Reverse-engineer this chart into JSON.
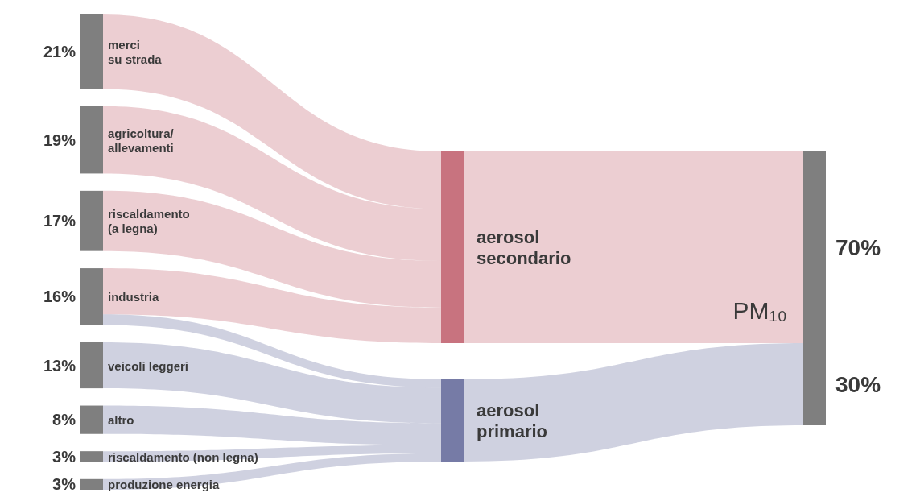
{
  "chart_data": {
    "type": "other",
    "title": "PM₁₀",
    "categories": [
      "merci\nsu strada",
      "agricoltura/\nallevamenti",
      "riscaldamento\n(a legna)",
      "industria",
      "veicoli leggeri",
      "altro",
      "riscaldamento (non legna)",
      "produzione energia",
      "aerosol\nsecondario",
      "aerosol\nprimario"
    ],
    "values": [
      21,
      19,
      17,
      16,
      13,
      8,
      3,
      3,
      70,
      30
    ],
    "value_labels": [
      "21%",
      "19%",
      "17%",
      "16%",
      "13%",
      "8%",
      "3%",
      "3%",
      "70%",
      "30%"
    ],
    "colors": [
      "#7f7f7f",
      "#7f7f7f",
      "#7f7f7f",
      "#7f7f7f",
      "#7f7f7f",
      "#7f7f7f",
      "#7f7f7f",
      "#7f7f7f",
      "#c8737f",
      "#767ba6"
    ]
  }
}
